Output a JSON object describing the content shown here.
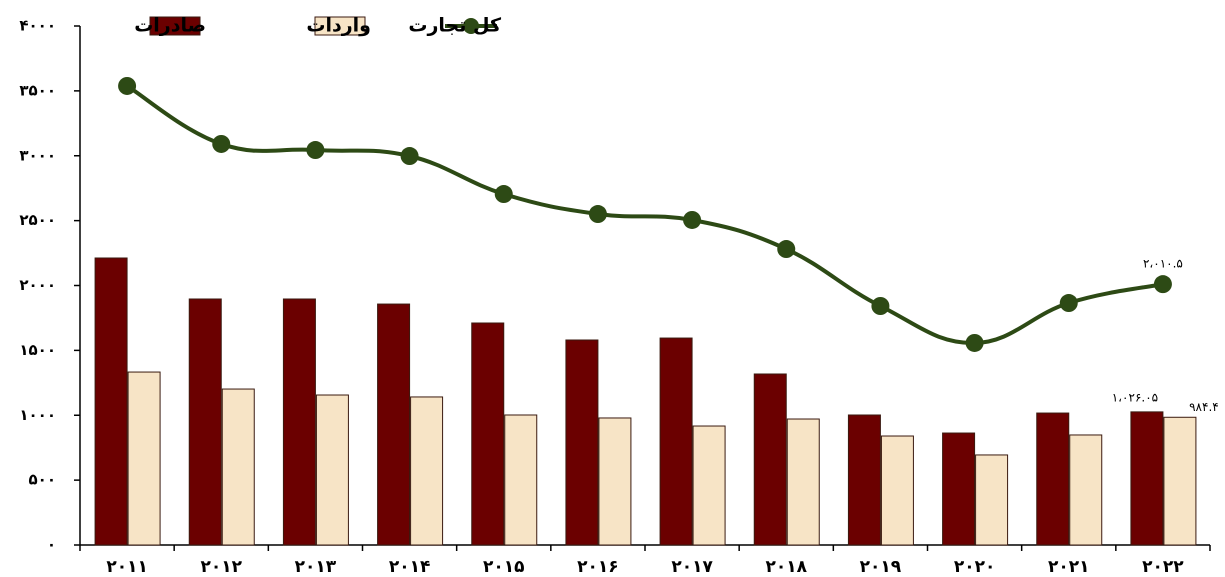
{
  "chart_data": {
    "type": "bar-line",
    "categories": [
      "۲۰۱۱",
      "۲۰۱۲",
      "۲۰۱۳",
      "۲۰۱۴",
      "۲۰۱۵",
      "۲۰۱۶",
      "۲۰۱۷",
      "۲۰۱۸",
      "۲۰۱۹",
      "۲۰۲۰",
      "۲۰۲۱",
      "۲۰۲۲"
    ],
    "series": [
      {
        "name": "صادرات",
        "type": "bar",
        "color": "#6b0000",
        "values": [
          2212,
          1896,
          1896,
          1857,
          1711,
          1580,
          1595,
          1318,
          1002,
          863,
          1017,
          1026.05
        ],
        "value_labels": [
          null,
          null,
          null,
          null,
          null,
          null,
          null,
          null,
          null,
          null,
          null,
          "۱،۰۲۶.۰۵"
        ]
      },
      {
        "name": "واردات",
        "type": "bar",
        "color": "#f7e4c6",
        "values": [
          1333,
          1202,
          1156,
          1141,
          1002,
          979,
          917,
          971,
          840,
          694,
          848,
          984.4
        ],
        "value_labels": [
          null,
          null,
          null,
          null,
          null,
          null,
          null,
          null,
          null,
          null,
          null,
          "۹۸۴.۴"
        ]
      },
      {
        "name": "کل تجارت",
        "type": "line",
        "color": "#2d4a15",
        "values": [
          3538,
          3091,
          3044,
          2998,
          2705,
          2551,
          2505,
          2281,
          1842,
          1557,
          1865,
          2010.5
        ],
        "value_labels": [
          null,
          null,
          null,
          null,
          null,
          null,
          null,
          null,
          null,
          null,
          null,
          "۲،۰۱۰.۵"
        ]
      }
    ],
    "ylim": [
      0,
      4000
    ],
    "yticks": [
      {
        "value": 0,
        "label": "۰"
      },
      {
        "value": 500,
        "label": "۵۰۰"
      },
      {
        "value": 1000,
        "label": "۱۰۰۰"
      },
      {
        "value": 1500,
        "label": "۱۵۰۰"
      },
      {
        "value": 2000,
        "label": "۲۰۰۰"
      },
      {
        "value": 2500,
        "label": "۲۵۰۰"
      },
      {
        "value": 3000,
        "label": "۳۰۰۰"
      },
      {
        "value": 3500,
        "label": "۳۵۰۰"
      },
      {
        "value": 4000,
        "label": "۴۰۰۰"
      }
    ],
    "legend": "top"
  }
}
